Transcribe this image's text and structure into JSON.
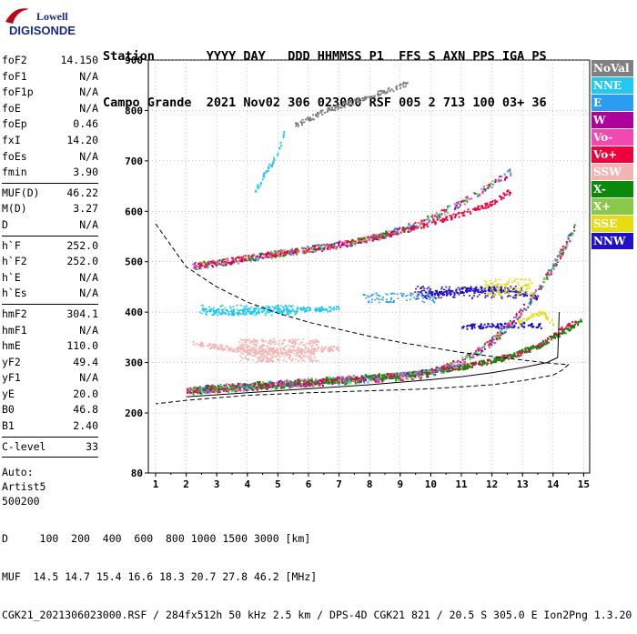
{
  "logo": {
    "top": "Lowell",
    "bottom": "DIGISONDE"
  },
  "header": {
    "labels": "Station       YYYY DAY   DDD HHMMSS P1  FFS S AXN PPS IGA PS",
    "values": "Campo Grande  2021 Nov02 306 023000 RSF 005 2 713 100 03+ 36"
  },
  "left_panel": {
    "group1": [
      {
        "label": "foF2",
        "value": "14.150"
      },
      {
        "label": "foF1",
        "value": "N/A"
      },
      {
        "label": "foF1p",
        "value": "N/A"
      },
      {
        "label": "foE",
        "value": "N/A"
      },
      {
        "label": "foEp",
        "value": "0.46"
      },
      {
        "label": "fxI",
        "value": "14.20"
      },
      {
        "label": "foEs",
        "value": "N/A"
      },
      {
        "label": "fmin",
        "value": "3.90"
      }
    ],
    "group2": [
      {
        "label": "MUF(D)",
        "value": "46.22"
      },
      {
        "label": "M(D)",
        "value": "3.27"
      },
      {
        "label": "D",
        "value": "N/A"
      }
    ],
    "group3": [
      {
        "label": "h`F",
        "value": "252.0"
      },
      {
        "label": "h`F2",
        "value": "252.0"
      },
      {
        "label": "h`E",
        "value": "N/A"
      },
      {
        "label": "h`Es",
        "value": "N/A"
      }
    ],
    "group4": [
      {
        "label": "hmF2",
        "value": "304.1"
      },
      {
        "label": "hmF1",
        "value": "N/A"
      },
      {
        "label": "hmE",
        "value": "110.0"
      },
      {
        "label": "yF2",
        "value": "49.4"
      },
      {
        "label": "yF1",
        "value": "N/A"
      },
      {
        "label": "yE",
        "value": "20.0"
      },
      {
        "label": "B0",
        "value": "46.8"
      },
      {
        "label": "B1",
        "value": "2.40"
      }
    ],
    "group5": [
      {
        "label": "C-level",
        "value": "33"
      }
    ],
    "auto_lines": [
      "Auto:",
      "Artist5",
      "500200"
    ]
  },
  "legend": [
    {
      "label": "NoVal",
      "color": "#808080"
    },
    {
      "label": "NNE",
      "color": "#22c8f0"
    },
    {
      "label": "E",
      "color": "#2a9df0"
    },
    {
      "label": "W",
      "color": "#b0009c"
    },
    {
      "label": "Vo-",
      "color": "#f04ab0"
    },
    {
      "label": "Vo+",
      "color": "#f0003c"
    },
    {
      "label": "SSW",
      "color": "#f5b4b4"
    },
    {
      "label": "X-",
      "color": "#0a8a0a"
    },
    {
      "label": "X+",
      "color": "#8ac84a"
    },
    {
      "label": "SSE",
      "color": "#e6dc14"
    },
    {
      "label": "NNW",
      "color": "#2010c8"
    }
  ],
  "footer": {
    "line1": "D     100  200  400  600  800 1000 1500 3000 [km]",
    "line2": "MUF  14.5 14.7 15.4 16.6 18.3 20.7 27.8 46.2 [MHz]",
    "line3": "CGK21_2021306023000.RSF / 284fx512h 50 kHz 2.5 km / DPS-4D CGK21 821 / 20.5 S 305.0 E Ion2Png 1.3.20"
  },
  "chart_data": {
    "type": "scatter",
    "x_ticks": [
      1,
      2,
      3,
      4,
      5,
      6,
      7,
      8,
      9,
      10,
      11,
      12,
      13,
      14,
      15
    ],
    "y_ticks": [
      80,
      200,
      300,
      400,
      500,
      600,
      700,
      800,
      900
    ],
    "xlim": [
      0.8,
      15.2
    ],
    "ylim": [
      80,
      900
    ],
    "xlabel": "",
    "ylabel": "",
    "grid": true,
    "legend_position": "right",
    "series": [
      {
        "color": "#f0003c",
        "trace": [
          [
            2,
            246
          ],
          [
            3,
            250
          ],
          [
            4,
            254
          ],
          [
            5,
            258
          ],
          [
            6,
            262
          ],
          [
            7,
            266
          ],
          [
            8,
            271
          ],
          [
            9,
            277
          ],
          [
            10,
            284
          ],
          [
            11,
            293
          ],
          [
            12,
            305
          ],
          [
            13,
            322
          ],
          [
            13.6,
            338
          ],
          [
            14.0,
            355
          ],
          [
            14.4,
            372
          ],
          [
            14.8,
            382
          ]
        ]
      },
      {
        "color": "#0a8a0a",
        "trace": [
          [
            2.2,
            246
          ],
          [
            3.5,
            252
          ],
          [
            5,
            258
          ],
          [
            6.5,
            264
          ],
          [
            8,
            271
          ],
          [
            9.5,
            280
          ],
          [
            11,
            292
          ],
          [
            12.5,
            312
          ],
          [
            13.5,
            334
          ],
          [
            14.3,
            362
          ],
          [
            14.9,
            384
          ]
        ]
      },
      {
        "color": "#f0003c",
        "trace": [
          [
            2.2,
            492
          ],
          [
            3,
            500
          ],
          [
            4,
            509
          ],
          [
            5,
            518
          ],
          [
            6,
            526
          ],
          [
            7,
            535
          ],
          [
            8,
            547
          ],
          [
            9,
            562
          ],
          [
            10,
            578
          ],
          [
            11,
            596
          ],
          [
            12,
            618
          ],
          [
            12.6,
            642
          ]
        ]
      },
      {
        "color": "#22c8f0",
        "trace": [
          [
            2.5,
            405
          ],
          [
            3.2,
            402
          ],
          [
            4,
            404
          ],
          [
            5,
            405
          ],
          [
            6,
            407
          ],
          [
            7,
            408
          ]
        ]
      },
      {
        "color": "#f5b4b4",
        "trace": [
          [
            2.2,
            340
          ],
          [
            3,
            332
          ],
          [
            4,
            325
          ],
          [
            5,
            322
          ],
          [
            6,
            326
          ],
          [
            7,
            330
          ]
        ]
      },
      {
        "color": "#2010c8",
        "trace": [
          [
            9.8,
            438
          ],
          [
            10.5,
            440
          ],
          [
            11.2,
            445
          ],
          [
            12,
            448
          ],
          [
            12.8,
            442
          ],
          [
            13.5,
            430
          ]
        ]
      },
      {
        "color": "#2010c8",
        "trace": [
          [
            11,
            372
          ],
          [
            12,
            374
          ],
          [
            13,
            376
          ],
          [
            13.6,
            374
          ]
        ]
      },
      {
        "color": "#e6dc14",
        "trace": [
          [
            12.8,
            380
          ],
          [
            13.2,
            390
          ],
          [
            13.6,
            400
          ],
          [
            14.0,
            380
          ]
        ]
      },
      {
        "color": "#22c8f0",
        "trace": [
          [
            4.2,
            640
          ],
          [
            4.6,
            680
          ],
          [
            5,
            720
          ],
          [
            5.2,
            760
          ]
        ]
      },
      {
        "color": "#808080",
        "trace": [
          [
            5.5,
            770
          ],
          [
            6.5,
            800
          ],
          [
            7.5,
            820
          ],
          [
            8.5,
            840
          ],
          [
            9.2,
            855
          ]
        ]
      }
    ],
    "profile_line": [
      [
        2,
        232
      ],
      [
        4,
        240
      ],
      [
        6,
        248
      ],
      [
        8,
        256
      ],
      [
        10,
        266
      ],
      [
        11,
        272
      ],
      [
        12,
        280
      ],
      [
        13,
        290
      ],
      [
        13.8,
        300
      ],
      [
        14.15,
        310
      ],
      [
        14.18,
        360
      ],
      [
        14.2,
        400
      ]
    ],
    "dashed_line": [
      [
        1,
        575
      ],
      [
        2,
        490
      ],
      [
        3,
        450
      ],
      [
        4,
        420
      ],
      [
        5,
        398
      ],
      [
        6,
        380
      ],
      [
        7,
        366
      ],
      [
        8,
        352
      ],
      [
        9,
        340
      ],
      [
        10,
        330
      ],
      [
        11,
        320
      ],
      [
        12,
        312
      ],
      [
        13,
        305
      ],
      [
        14,
        298
      ],
      [
        14.5,
        296
      ],
      [
        14.3,
        285
      ],
      [
        14,
        275
      ],
      [
        13,
        264
      ],
      [
        12,
        256
      ],
      [
        10,
        248
      ],
      [
        8,
        244
      ],
      [
        6,
        240
      ],
      [
        4,
        235
      ],
      [
        2,
        225
      ],
      [
        1,
        218
      ]
    ]
  }
}
